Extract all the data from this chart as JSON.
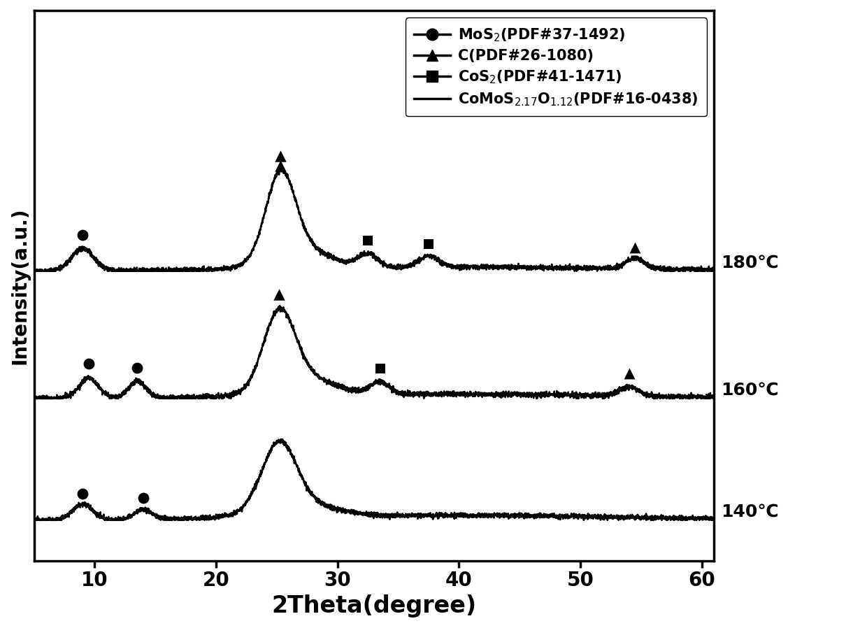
{
  "title": "",
  "xlabel": "2Theta(degree)",
  "ylabel": "Intensity(a.u.)",
  "xlim": [
    5,
    61
  ],
  "ylim": [
    0,
    0.95
  ],
  "xticks": [
    10,
    20,
    30,
    40,
    50,
    60
  ],
  "background_color": "#ffffff",
  "line_color": "#000000",
  "temperatures": [
    "180℃",
    "160℃",
    "140℃"
  ],
  "offsets": [
    0.5,
    0.28,
    0.07
  ],
  "peak_scale": [
    0.18,
    0.16,
    0.14
  ],
  "xlabel_fontsize": 24,
  "ylabel_fontsize": 20,
  "tick_fontsize": 20,
  "legend_fontsize": 15,
  "temp_label_fontsize": 18
}
